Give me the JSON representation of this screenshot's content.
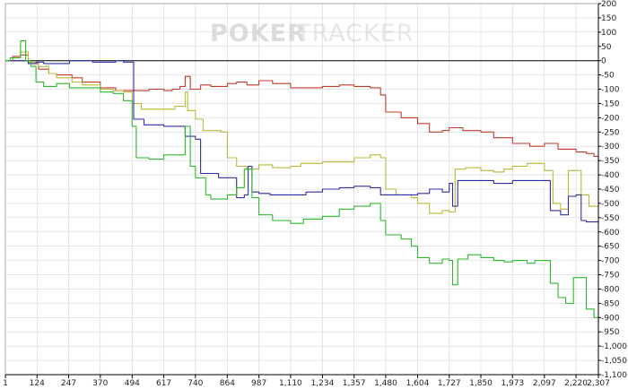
{
  "watermark": {
    "brand_bold": "POKER",
    "brand_light": "TRACKER"
  },
  "colors": {
    "background": "#ffffff",
    "grid": "#d4d4d4",
    "axis": "#000000",
    "zero_line": "#000000",
    "watermark": "#dcdcdc"
  },
  "chart_data": {
    "type": "line",
    "title": "",
    "xlabel": "",
    "ylabel": "",
    "xlim": [
      1,
      2307
    ],
    "ylim": [
      -1100,
      200
    ],
    "grid": true,
    "legend": "none",
    "x_ticks": [
      1,
      124,
      247,
      370,
      494,
      617,
      740,
      864,
      987,
      1110,
      1234,
      1357,
      1480,
      1604,
      1727,
      1850,
      1973,
      2097,
      2220,
      2307
    ],
    "x_tick_labels": [
      "1",
      "124",
      "247",
      "370",
      "494",
      "617",
      "740",
      "864",
      "987",
      "1,110",
      "1,234",
      "1,357",
      "1,480",
      "1,604",
      "1,727",
      "1,850",
      "1,973",
      "2,097",
      "2,220",
      "2,307"
    ],
    "y_ticks": [
      200,
      150,
      100,
      50,
      0,
      -50,
      -100,
      -150,
      -200,
      -250,
      -300,
      -350,
      -400,
      -450,
      -500,
      -550,
      -600,
      -650,
      -700,
      -750,
      -800,
      -850,
      -900,
      -950,
      -1000,
      -1050,
      -1100
    ],
    "y_tick_labels": [
      "200",
      "150",
      "100",
      "50",
      "0",
      "-50",
      "-100",
      "-150",
      "-200",
      "-250",
      "-300",
      "-350",
      "-400",
      "-450",
      "-500",
      "-550",
      "-600",
      "-650",
      "-700",
      "-750",
      "-800",
      "-850",
      "-900",
      "-950",
      "-1,000",
      "-1,050",
      "-1,100"
    ],
    "series": [
      {
        "color": "#c0392b",
        "points": [
          [
            1,
            0
          ],
          [
            30,
            15
          ],
          [
            60,
            20
          ],
          [
            90,
            -10
          ],
          [
            130,
            -30
          ],
          [
            170,
            -45
          ],
          [
            200,
            -50
          ],
          [
            260,
            -60
          ],
          [
            300,
            -75
          ],
          [
            370,
            -95
          ],
          [
            430,
            -105
          ],
          [
            494,
            -105
          ],
          [
            560,
            -100
          ],
          [
            617,
            -105
          ],
          [
            650,
            -100
          ],
          [
            680,
            -90
          ],
          [
            700,
            -55
          ],
          [
            720,
            -100
          ],
          [
            760,
            -85
          ],
          [
            800,
            -90
          ],
          [
            864,
            -80
          ],
          [
            900,
            -75
          ],
          [
            940,
            -85
          ],
          [
            987,
            -70
          ],
          [
            1040,
            -80
          ],
          [
            1110,
            -95
          ],
          [
            1160,
            -95
          ],
          [
            1234,
            -90
          ],
          [
            1300,
            -85
          ],
          [
            1357,
            -90
          ],
          [
            1420,
            -95
          ],
          [
            1460,
            -120
          ],
          [
            1480,
            -180
          ],
          [
            1540,
            -200
          ],
          [
            1604,
            -220
          ],
          [
            1650,
            -250
          ],
          [
            1700,
            -245
          ],
          [
            1727,
            -235
          ],
          [
            1780,
            -245
          ],
          [
            1850,
            -250
          ],
          [
            1900,
            -270
          ],
          [
            1973,
            -290
          ],
          [
            2040,
            -300
          ],
          [
            2097,
            -290
          ],
          [
            2150,
            -310
          ],
          [
            2220,
            -320
          ],
          [
            2260,
            -325
          ],
          [
            2290,
            -335
          ],
          [
            2307,
            -355
          ]
        ]
      },
      {
        "color": "#b8b83a",
        "points": [
          [
            1,
            0
          ],
          [
            30,
            10
          ],
          [
            60,
            30
          ],
          [
            90,
            -5
          ],
          [
            130,
            -20
          ],
          [
            170,
            -45
          ],
          [
            200,
            -60
          ],
          [
            260,
            -75
          ],
          [
            300,
            -85
          ],
          [
            370,
            -100
          ],
          [
            420,
            -105
          ],
          [
            460,
            -110
          ],
          [
            494,
            -150
          ],
          [
            530,
            -170
          ],
          [
            617,
            -170
          ],
          [
            660,
            -160
          ],
          [
            700,
            -110
          ],
          [
            710,
            -175
          ],
          [
            740,
            -205
          ],
          [
            770,
            -245
          ],
          [
            800,
            -245
          ],
          [
            840,
            -250
          ],
          [
            864,
            -340
          ],
          [
            900,
            -370
          ],
          [
            940,
            -380
          ],
          [
            987,
            -365
          ],
          [
            1040,
            -375
          ],
          [
            1110,
            -370
          ],
          [
            1150,
            -360
          ],
          [
            1234,
            -355
          ],
          [
            1300,
            -355
          ],
          [
            1357,
            -340
          ],
          [
            1420,
            -330
          ],
          [
            1460,
            -340
          ],
          [
            1480,
            -450
          ],
          [
            1520,
            -470
          ],
          [
            1580,
            -480
          ],
          [
            1604,
            -500
          ],
          [
            1650,
            -535
          ],
          [
            1700,
            -525
          ],
          [
            1727,
            -530
          ],
          [
            1750,
            -380
          ],
          [
            1790,
            -375
          ],
          [
            1850,
            -385
          ],
          [
            1900,
            -390
          ],
          [
            1940,
            -380
          ],
          [
            1973,
            -370
          ],
          [
            2030,
            -360
          ],
          [
            2097,
            -385
          ],
          [
            2130,
            -500
          ],
          [
            2160,
            -520
          ],
          [
            2190,
            -385
          ],
          [
            2220,
            -385
          ],
          [
            2240,
            -470
          ],
          [
            2270,
            -510
          ],
          [
            2307,
            -505
          ]
        ]
      },
      {
        "color": "#2e2ea8",
        "points": [
          [
            1,
            0
          ],
          [
            40,
            0
          ],
          [
            80,
            0
          ],
          [
            90,
            -10
          ],
          [
            120,
            -5
          ],
          [
            150,
            -10
          ],
          [
            250,
            0
          ],
          [
            300,
            0
          ],
          [
            340,
            -5
          ],
          [
            370,
            -5
          ],
          [
            430,
            0
          ],
          [
            460,
            -5
          ],
          [
            494,
            -5
          ],
          [
            500,
            -205
          ],
          [
            540,
            -225
          ],
          [
            617,
            -230
          ],
          [
            680,
            -230
          ],
          [
            700,
            -265
          ],
          [
            740,
            -275
          ],
          [
            760,
            -395
          ],
          [
            790,
            -395
          ],
          [
            830,
            -410
          ],
          [
            864,
            -410
          ],
          [
            900,
            -480
          ],
          [
            930,
            -470
          ],
          [
            945,
            -370
          ],
          [
            960,
            -460
          ],
          [
            987,
            -465
          ],
          [
            1030,
            -470
          ],
          [
            1110,
            -470
          ],
          [
            1170,
            -460
          ],
          [
            1234,
            -450
          ],
          [
            1300,
            -445
          ],
          [
            1357,
            -440
          ],
          [
            1420,
            -445
          ],
          [
            1460,
            -470
          ],
          [
            1480,
            -470
          ],
          [
            1540,
            -470
          ],
          [
            1604,
            -465
          ],
          [
            1650,
            -450
          ],
          [
            1700,
            -460
          ],
          [
            1727,
            -430
          ],
          [
            1740,
            -510
          ],
          [
            1760,
            -420
          ],
          [
            1790,
            -420
          ],
          [
            1850,
            -420
          ],
          [
            1900,
            -430
          ],
          [
            1940,
            -430
          ],
          [
            1973,
            -420
          ],
          [
            2030,
            -420
          ],
          [
            2097,
            -420
          ],
          [
            2120,
            -525
          ],
          [
            2160,
            -540
          ],
          [
            2190,
            -475
          ],
          [
            2220,
            -470
          ],
          [
            2240,
            -560
          ],
          [
            2260,
            -565
          ],
          [
            2307,
            -560
          ]
        ]
      },
      {
        "color": "#2db82d",
        "points": [
          [
            1,
            0
          ],
          [
            20,
            10
          ],
          [
            60,
            70
          ],
          [
            80,
            0
          ],
          [
            100,
            -20
          ],
          [
            120,
            -75
          ],
          [
            150,
            -90
          ],
          [
            200,
            -80
          ],
          [
            250,
            -95
          ],
          [
            300,
            -95
          ],
          [
            370,
            -110
          ],
          [
            420,
            -115
          ],
          [
            460,
            -140
          ],
          [
            494,
            -230
          ],
          [
            510,
            -340
          ],
          [
            560,
            -345
          ],
          [
            617,
            -330
          ],
          [
            660,
            -330
          ],
          [
            700,
            -230
          ],
          [
            720,
            -370
          ],
          [
            740,
            -410
          ],
          [
            780,
            -470
          ],
          [
            800,
            -485
          ],
          [
            864,
            -470
          ],
          [
            900,
            -445
          ],
          [
            930,
            -380
          ],
          [
            960,
            -480
          ],
          [
            987,
            -540
          ],
          [
            1040,
            -560
          ],
          [
            1110,
            -570
          ],
          [
            1160,
            -555
          ],
          [
            1234,
            -545
          ],
          [
            1300,
            -520
          ],
          [
            1357,
            -510
          ],
          [
            1420,
            -500
          ],
          [
            1460,
            -560
          ],
          [
            1480,
            -610
          ],
          [
            1540,
            -625
          ],
          [
            1580,
            -650
          ],
          [
            1604,
            -690
          ],
          [
            1650,
            -710
          ],
          [
            1700,
            -695
          ],
          [
            1727,
            -700
          ],
          [
            1740,
            -785
          ],
          [
            1760,
            -695
          ],
          [
            1800,
            -680
          ],
          [
            1850,
            -690
          ],
          [
            1900,
            -700
          ],
          [
            1940,
            -705
          ],
          [
            1973,
            -700
          ],
          [
            2030,
            -710
          ],
          [
            2060,
            -700
          ],
          [
            2097,
            -700
          ],
          [
            2120,
            -780
          ],
          [
            2150,
            -830
          ],
          [
            2180,
            -850
          ],
          [
            2200,
            -850
          ],
          [
            2210,
            -760
          ],
          [
            2240,
            -760
          ],
          [
            2260,
            -870
          ],
          [
            2290,
            -900
          ],
          [
            2307,
            -930
          ]
        ]
      }
    ]
  }
}
